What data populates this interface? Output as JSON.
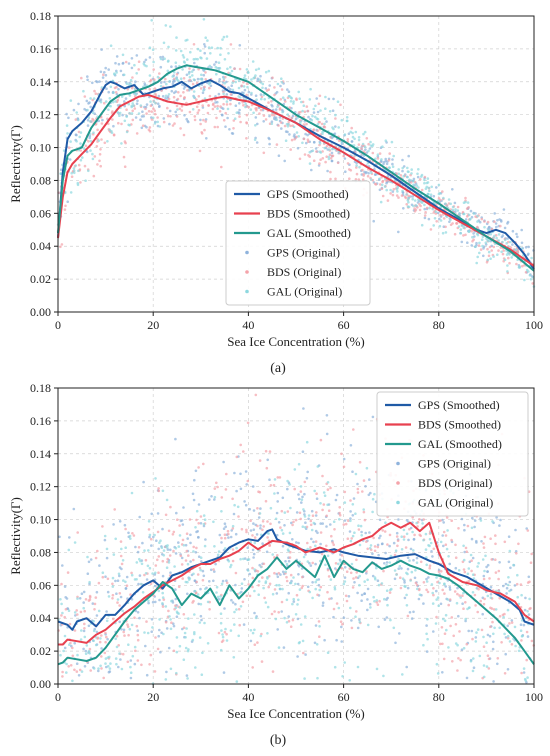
{
  "chart_data": [
    {
      "type": "line",
      "caption": "(a)",
      "xlabel": "Sea Ice Concentration (%)",
      "ylabel": "Reflectivity(Γ)",
      "xlim": [
        0,
        100
      ],
      "ylim": [
        0,
        0.18
      ],
      "xticks": [
        "0",
        "20",
        "40",
        "60",
        "80",
        "100"
      ],
      "yticks": [
        "0.00",
        "0.02",
        "0.04",
        "0.06",
        "0.08",
        "0.10",
        "0.12",
        "0.14",
        "0.16",
        "0.18"
      ],
      "grid": true,
      "legend_position": "lower-center",
      "series": [
        {
          "name": "GPS (Smoothed)",
          "style": "line",
          "color": "#1f5aa6",
          "x": [
            0,
            1,
            2,
            3,
            5,
            7,
            9,
            10,
            11,
            12,
            14,
            16,
            18,
            20,
            22,
            24,
            26,
            28,
            30,
            32,
            34,
            36,
            38,
            40,
            45,
            50,
            55,
            60,
            65,
            70,
            75,
            80,
            85,
            88,
            90,
            92,
            94,
            96,
            98,
            100
          ],
          "y": [
            0.045,
            0.085,
            0.105,
            0.11,
            0.115,
            0.122,
            0.133,
            0.138,
            0.14,
            0.139,
            0.136,
            0.138,
            0.132,
            0.134,
            0.136,
            0.137,
            0.14,
            0.136,
            0.139,
            0.141,
            0.138,
            0.134,
            0.133,
            0.13,
            0.122,
            0.115,
            0.107,
            0.1,
            0.092,
            0.083,
            0.073,
            0.063,
            0.055,
            0.05,
            0.048,
            0.05,
            0.048,
            0.042,
            0.035,
            0.026
          ]
        },
        {
          "name": "BDS (Smoothed)",
          "style": "line",
          "color": "#e8414f",
          "x": [
            0,
            1,
            2,
            3,
            5,
            7,
            9,
            11,
            13,
            15,
            17,
            19,
            21,
            23,
            25,
            27,
            30,
            33,
            35,
            38,
            40,
            45,
            50,
            55,
            60,
            65,
            70,
            75,
            80,
            85,
            90,
            95,
            100
          ],
          "y": [
            0.045,
            0.07,
            0.085,
            0.09,
            0.096,
            0.102,
            0.11,
            0.118,
            0.125,
            0.128,
            0.131,
            0.132,
            0.13,
            0.128,
            0.127,
            0.126,
            0.128,
            0.13,
            0.131,
            0.129,
            0.128,
            0.122,
            0.115,
            0.105,
            0.097,
            0.088,
            0.08,
            0.071,
            0.062,
            0.054,
            0.046,
            0.038,
            0.028
          ]
        },
        {
          "name": "GAL (Smoothed)",
          "style": "line",
          "color": "#23998e",
          "x": [
            0,
            1,
            2,
            3,
            5,
            7,
            9,
            11,
            13,
            15,
            17,
            19,
            21,
            23,
            25,
            27,
            29,
            31,
            33,
            35,
            37,
            40,
            45,
            50,
            55,
            60,
            65,
            70,
            75,
            80,
            85,
            90,
            95,
            100
          ],
          "y": [
            0.048,
            0.08,
            0.095,
            0.098,
            0.1,
            0.112,
            0.12,
            0.128,
            0.132,
            0.133,
            0.135,
            0.137,
            0.14,
            0.145,
            0.148,
            0.15,
            0.149,
            0.148,
            0.147,
            0.145,
            0.143,
            0.14,
            0.13,
            0.12,
            0.112,
            0.104,
            0.095,
            0.085,
            0.075,
            0.066,
            0.056,
            0.046,
            0.037,
            0.025
          ]
        },
        {
          "name": "GPS (Original)",
          "style": "scatter",
          "color": "#8fb3dc"
        },
        {
          "name": "BDS (Original)",
          "style": "scatter",
          "color": "#f4a3aa"
        },
        {
          "name": "GAL (Original)",
          "style": "scatter",
          "color": "#8ed8df"
        }
      ]
    },
    {
      "type": "line",
      "caption": "(b)",
      "xlabel": "Sea Ice Concentration (%)",
      "ylabel": "Reflectivity(Γ)",
      "xlim": [
        0,
        100
      ],
      "ylim": [
        0,
        0.18
      ],
      "xticks": [
        "0",
        "20",
        "40",
        "60",
        "80",
        "100"
      ],
      "yticks": [
        "0.00",
        "0.02",
        "0.04",
        "0.06",
        "0.08",
        "0.10",
        "0.12",
        "0.14",
        "0.16",
        "0.18"
      ],
      "grid": true,
      "legend_position": "upper-right",
      "series": [
        {
          "name": "GPS (Smoothed)",
          "style": "line",
          "color": "#1f5aa6",
          "x": [
            0,
            2,
            3,
            4,
            6,
            8,
            10,
            12,
            14,
            16,
            18,
            20,
            22,
            24,
            26,
            28,
            30,
            32,
            34,
            36,
            38,
            40,
            42,
            44,
            45,
            46,
            48,
            50,
            52,
            55,
            58,
            60,
            63,
            66,
            69,
            72,
            75,
            78,
            80,
            83,
            86,
            89,
            92,
            95,
            97,
            98,
            100
          ],
          "y": [
            0.038,
            0.036,
            0.033,
            0.038,
            0.04,
            0.035,
            0.042,
            0.042,
            0.048,
            0.055,
            0.06,
            0.063,
            0.058,
            0.066,
            0.068,
            0.071,
            0.073,
            0.075,
            0.077,
            0.083,
            0.086,
            0.088,
            0.087,
            0.093,
            0.094,
            0.088,
            0.085,
            0.083,
            0.081,
            0.08,
            0.082,
            0.08,
            0.078,
            0.077,
            0.076,
            0.078,
            0.079,
            0.075,
            0.073,
            0.068,
            0.065,
            0.06,
            0.055,
            0.05,
            0.045,
            0.038,
            0.036
          ]
        },
        {
          "name": "BDS (Smoothed)",
          "style": "line",
          "color": "#e8414f",
          "x": [
            0,
            1,
            2,
            4,
            6,
            8,
            10,
            12,
            14,
            16,
            18,
            20,
            22,
            24,
            26,
            28,
            30,
            32,
            34,
            36,
            38,
            40,
            42,
            45,
            48,
            50,
            52,
            55,
            58,
            60,
            62,
            64,
            66,
            68,
            70,
            72,
            74,
            76,
            78,
            80,
            82,
            85,
            88,
            90,
            93,
            96,
            98,
            100
          ],
          "y": [
            0.024,
            0.024,
            0.027,
            0.026,
            0.025,
            0.03,
            0.033,
            0.038,
            0.043,
            0.047,
            0.052,
            0.056,
            0.06,
            0.063,
            0.066,
            0.07,
            0.073,
            0.073,
            0.076,
            0.078,
            0.081,
            0.086,
            0.082,
            0.087,
            0.086,
            0.084,
            0.08,
            0.083,
            0.08,
            0.083,
            0.085,
            0.088,
            0.09,
            0.095,
            0.098,
            0.095,
            0.098,
            0.093,
            0.098,
            0.08,
            0.067,
            0.062,
            0.06,
            0.057,
            0.055,
            0.05,
            0.042,
            0.038
          ]
        },
        {
          "name": "GAL (Smoothed)",
          "style": "line",
          "color": "#23998e",
          "x": [
            0,
            1,
            2,
            4,
            6,
            8,
            10,
            12,
            14,
            16,
            18,
            20,
            22,
            24,
            26,
            28,
            30,
            32,
            34,
            36,
            38,
            40,
            42,
            44,
            46,
            48,
            50,
            52,
            54,
            56,
            58,
            60,
            62,
            64,
            66,
            68,
            70,
            72,
            74,
            76,
            78,
            80,
            82,
            84,
            86,
            88,
            90,
            92,
            94,
            96,
            98,
            100
          ],
          "y": [
            0.012,
            0.013,
            0.016,
            0.015,
            0.014,
            0.016,
            0.022,
            0.03,
            0.038,
            0.045,
            0.05,
            0.055,
            0.062,
            0.058,
            0.048,
            0.055,
            0.052,
            0.058,
            0.048,
            0.06,
            0.052,
            0.058,
            0.066,
            0.07,
            0.077,
            0.07,
            0.075,
            0.07,
            0.065,
            0.078,
            0.065,
            0.075,
            0.07,
            0.068,
            0.074,
            0.07,
            0.072,
            0.075,
            0.072,
            0.07,
            0.067,
            0.066,
            0.064,
            0.06,
            0.055,
            0.05,
            0.045,
            0.04,
            0.034,
            0.028,
            0.02,
            0.012
          ]
        },
        {
          "name": "GPS (Original)",
          "style": "scatter",
          "color": "#8fb3dc"
        },
        {
          "name": "BDS (Original)",
          "style": "scatter",
          "color": "#f4a3aa"
        },
        {
          "name": "GAL (Original)",
          "style": "scatter",
          "color": "#8ed8df"
        }
      ]
    }
  ]
}
